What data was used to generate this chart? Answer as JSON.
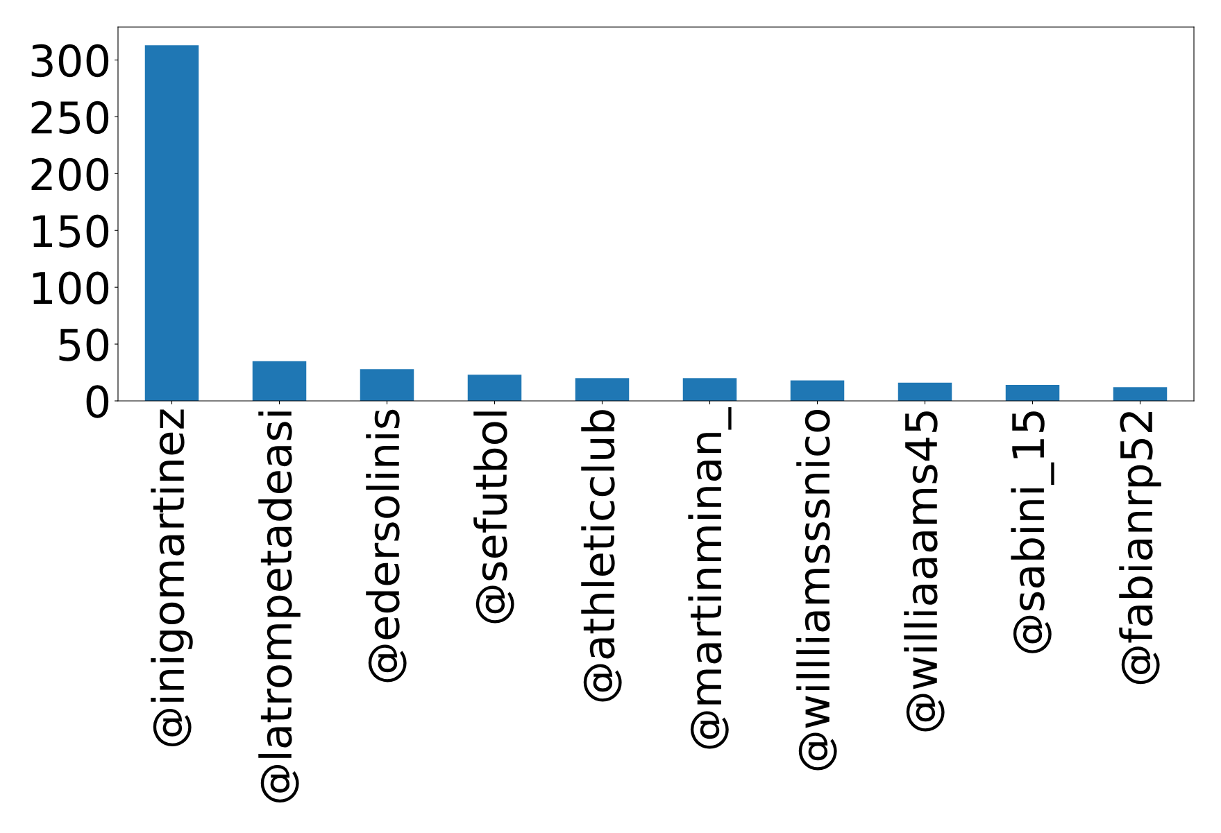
{
  "chart_data": {
    "type": "bar",
    "categories": [
      "@inigomartinez",
      "@latrompetadeasi",
      "@edersolinis",
      "@sefutbol",
      "@athleticclub",
      "@martinminan_",
      "@willliamsssnico",
      "@williaaams45",
      "@sabini_15",
      "@fabianrp52"
    ],
    "values": [
      313,
      35,
      28,
      23,
      20,
      20,
      18,
      16,
      14,
      12
    ],
    "color": "#1f77b4",
    "ylim": [
      0,
      329
    ],
    "yticks": [
      0,
      50,
      100,
      150,
      200,
      250,
      300
    ],
    "grid": false,
    "legend": false
  }
}
